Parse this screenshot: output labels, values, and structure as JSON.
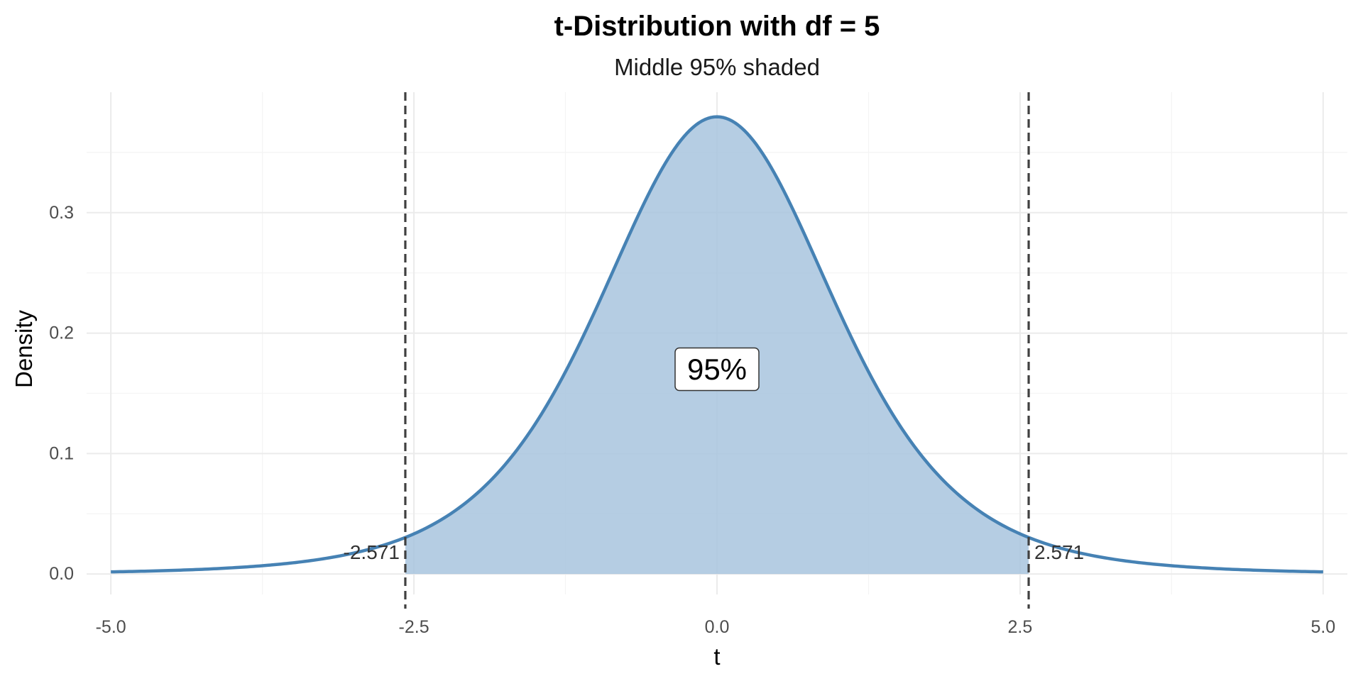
{
  "chart_data": {
    "type": "area",
    "title": "t-Distribution with df = 5",
    "subtitle": "Middle 95% shaded",
    "xlabel": "t",
    "ylabel": "Density",
    "df": 5,
    "xlim": [
      -5.2,
      5.2
    ],
    "ylim": [
      -0.017,
      0.4
    ],
    "x_ticks": [
      -5,
      -2.5,
      0,
      2.5,
      5
    ],
    "x_tick_labels": [
      "-5.0",
      "-2.5",
      "0.0",
      "2.5",
      "5.0"
    ],
    "y_ticks": [
      0,
      0.1,
      0.2,
      0.3
    ],
    "y_tick_labels": [
      "0.0",
      "0.1",
      "0.2",
      "0.3"
    ],
    "x_range": [
      -5,
      5
    ],
    "critical_values": [
      -2.571,
      2.571
    ],
    "critical_labels": [
      "-2.571",
      "2.571"
    ],
    "shaded_region": [
      -2.571,
      2.571
    ],
    "area_label": "95%",
    "area_label_position": {
      "x": 0,
      "y": 0.17
    },
    "grid": true,
    "legend": "none",
    "colors": {
      "curve": "#4682b4",
      "fill": "#a8c4de",
      "critical_line": "#404040",
      "grid_major": "#ebebeb",
      "grid_minor": "#f4f4f4"
    }
  }
}
